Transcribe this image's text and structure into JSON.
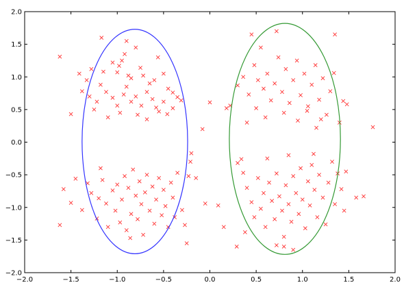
{
  "chart_data": {
    "type": "scatter",
    "xlim": [
      -2.0,
      2.0
    ],
    "ylim": [
      -2.0,
      2.0
    ],
    "x_ticks": [
      "−2.0",
      "−1.5",
      "−1.0",
      "−0.5",
      "0.0",
      "0.5",
      "1.0",
      "1.5",
      "2.0"
    ],
    "y_ticks": [
      "2.0",
      "1.5",
      "1.0",
      "0.5",
      "0.0",
      "−0.5",
      "−1.0",
      "−1.5",
      "−2.0"
    ],
    "grid": false,
    "marker": "x",
    "point_color": "#ff3333",
    "ellipses": [
      {
        "cx": -0.81,
        "cy": 0.01,
        "rx": 0.57,
        "ry": 1.72,
        "color": "#3333ff"
      },
      {
        "cx": 0.81,
        "cy": 0.05,
        "rx": 0.6,
        "ry": 1.77,
        "color": "#339933"
      }
    ],
    "points": [
      [
        -1.62,
        1.31
      ],
      [
        -1.41,
        1.05
      ],
      [
        -1.33,
        0.95
      ],
      [
        -1.28,
        1.12
      ],
      [
        -1.15,
        1.08
      ],
      [
        -1.05,
        1.22
      ],
      [
        -0.98,
        1.17
      ],
      [
        -0.95,
        1.25
      ],
      [
        -0.92,
        1.35
      ],
      [
        -0.88,
        1.02
      ],
      [
        -0.85,
        0.98
      ],
      [
        -0.8,
        1.45
      ],
      [
        -0.75,
        1.14
      ],
      [
        -0.72,
        1.02
      ],
      [
        -0.65,
        0.9
      ],
      [
        -0.6,
        0.95
      ],
      [
        -0.56,
        1.3
      ],
      [
        -0.5,
        1.05
      ],
      [
        -0.45,
        0.82
      ],
      [
        -0.4,
        0.76
      ],
      [
        -0.35,
        0.69
      ],
      [
        -0.31,
        0.64
      ],
      [
        -1.38,
        0.78
      ],
      [
        -1.3,
        0.7
      ],
      [
        -1.22,
        0.62
      ],
      [
        -1.18,
        0.88
      ],
      [
        -1.12,
        0.77
      ],
      [
        -1.05,
        0.68
      ],
      [
        -1.0,
        0.56
      ],
      [
        -0.93,
        0.73
      ],
      [
        -0.9,
        0.85
      ],
      [
        -0.85,
        0.62
      ],
      [
        -0.8,
        0.7
      ],
      [
        -0.74,
        0.56
      ],
      [
        -0.68,
        0.77
      ],
      [
        -0.62,
        0.66
      ],
      [
        -0.58,
        0.53
      ],
      [
        -0.55,
        0.47
      ],
      [
        -0.5,
        0.62
      ],
      [
        -0.46,
        0.43
      ],
      [
        -0.4,
        0.52
      ],
      [
        -1.5,
        0.43
      ],
      [
        -1.25,
        0.5
      ],
      [
        -1.1,
        0.38
      ],
      [
        -0.97,
        0.45
      ],
      [
        -0.78,
        0.42
      ],
      [
        -0.68,
        0.35
      ],
      [
        -1.17,
        1.6
      ],
      [
        -0.9,
        1.55
      ],
      [
        -1.0,
        1.07
      ],
      [
        -1.58,
        -0.72
      ],
      [
        -1.5,
        -0.93
      ],
      [
        -1.45,
        -0.56
      ],
      [
        -1.38,
        -1.04
      ],
      [
        -1.32,
        -0.63
      ],
      [
        -1.28,
        -0.78
      ],
      [
        -1.22,
        -1.17
      ],
      [
        -1.2,
        -0.86
      ],
      [
        -1.16,
        -0.58
      ],
      [
        -1.12,
        -0.94
      ],
      [
        -1.1,
        -1.3
      ],
      [
        -1.05,
        -0.74
      ],
      [
        -1.02,
        -1.05
      ],
      [
        -1.0,
        -0.65
      ],
      [
        -0.97,
        -1.23
      ],
      [
        -0.95,
        -0.88
      ],
      [
        -0.92,
        -0.52
      ],
      [
        -0.9,
        -1.35
      ],
      [
        -0.88,
        -0.7
      ],
      [
        -0.85,
        -1.1
      ],
      [
        -0.83,
        -0.42
      ],
      [
        -0.8,
        -0.82
      ],
      [
        -0.78,
        -1.18
      ],
      [
        -0.76,
        -0.6
      ],
      [
        -0.74,
        -0.95
      ],
      [
        -0.72,
        -1.42
      ],
      [
        -0.7,
        -0.77
      ],
      [
        -0.68,
        -0.5
      ],
      [
        -0.65,
        -1.05
      ],
      [
        -0.62,
        -0.68
      ],
      [
        -0.6,
        -1.25
      ],
      [
        -0.58,
        -0.88
      ],
      [
        -0.55,
        -0.55
      ],
      [
        -0.52,
        -1.12
      ],
      [
        -0.5,
        -0.73
      ],
      [
        -0.48,
        -0.98
      ],
      [
        -0.45,
        -1.3
      ],
      [
        -0.42,
        -0.62
      ],
      [
        -0.4,
        -0.85
      ],
      [
        -0.38,
        -1.15
      ],
      [
        -0.35,
        -0.47
      ],
      [
        -0.3,
        -1.04
      ],
      [
        -0.27,
        -1.27
      ],
      [
        -0.25,
        -1.55
      ],
      [
        -0.23,
        -0.52
      ],
      [
        -0.21,
        -0.3
      ],
      [
        -0.2,
        -0.17
      ],
      [
        -0.86,
        -1.47
      ],
      [
        -1.62,
        -1.27
      ],
      [
        -1.18,
        -0.4
      ],
      [
        -0.08,
        0.2
      ],
      [
        0.0,
        0.61
      ],
      [
        -0.05,
        -0.94
      ],
      [
        0.09,
        -0.97
      ],
      [
        0.15,
        -1.3
      ],
      [
        0.18,
        0.52
      ],
      [
        0.22,
        0.56
      ],
      [
        0.29,
        -1.6
      ],
      [
        0.34,
        -0.26
      ],
      [
        -0.15,
        -0.55
      ],
      [
        0.3,
        0.87
      ],
      [
        0.36,
        1.0
      ],
      [
        0.42,
        0.73
      ],
      [
        0.48,
        1.18
      ],
      [
        0.52,
        0.95
      ],
      [
        0.55,
        1.45
      ],
      [
        0.58,
        0.82
      ],
      [
        0.62,
        1.05
      ],
      [
        0.66,
        0.64
      ],
      [
        0.7,
        0.9
      ],
      [
        0.74,
        1.3
      ],
      [
        0.78,
        0.77
      ],
      [
        0.82,
        1.12
      ],
      [
        0.86,
        0.6
      ],
      [
        0.9,
        0.95
      ],
      [
        0.94,
        1.25
      ],
      [
        0.98,
        0.72
      ],
      [
        1.02,
        1.05
      ],
      [
        1.06,
        0.55
      ],
      [
        1.1,
        0.88
      ],
      [
        1.14,
        1.18
      ],
      [
        1.18,
        0.65
      ],
      [
        1.22,
        0.98
      ],
      [
        1.26,
        0.42
      ],
      [
        1.3,
        0.78
      ],
      [
        1.34,
        1.06
      ],
      [
        1.4,
        0.3
      ],
      [
        1.44,
        0.63
      ],
      [
        1.48,
        0.58
      ],
      [
        1.35,
        1.65
      ],
      [
        0.45,
        1.65
      ],
      [
        0.72,
        1.7
      ],
      [
        0.5,
        0.52
      ],
      [
        0.6,
        0.38
      ],
      [
        0.8,
        0.45
      ],
      [
        0.95,
        0.33
      ],
      [
        1.05,
        0.48
      ],
      [
        1.15,
        0.22
      ],
      [
        1.2,
        0.35
      ],
      [
        0.4,
        0.3
      ],
      [
        0.3,
        -0.32
      ],
      [
        0.36,
        -0.47
      ],
      [
        0.4,
        -0.7
      ],
      [
        0.45,
        -0.92
      ],
      [
        0.48,
        -1.15
      ],
      [
        0.52,
        -0.55
      ],
      [
        0.55,
        -1.02
      ],
      [
        0.58,
        -0.78
      ],
      [
        0.6,
        -1.3
      ],
      [
        0.64,
        -0.62
      ],
      [
        0.67,
        -0.9
      ],
      [
        0.7,
        -1.18
      ],
      [
        0.72,
        -0.48
      ],
      [
        0.75,
        -0.83
      ],
      [
        0.78,
        -1.05
      ],
      [
        0.8,
        -1.45
      ],
      [
        0.82,
        -0.66
      ],
      [
        0.85,
        -0.95
      ],
      [
        0.88,
        -1.22
      ],
      [
        0.9,
        -0.52
      ],
      [
        0.93,
        -0.78
      ],
      [
        0.96,
        -1.1
      ],
      [
        0.98,
        -0.4
      ],
      [
        1.0,
        -0.88
      ],
      [
        1.03,
        -1.32
      ],
      [
        1.06,
        -0.6
      ],
      [
        1.08,
        -0.97
      ],
      [
        1.1,
        -0.35
      ],
      [
        1.13,
        -0.73
      ],
      [
        1.16,
        -1.15
      ],
      [
        1.18,
        -0.5
      ],
      [
        1.22,
        -0.85
      ],
      [
        1.25,
        -1.26
      ],
      [
        1.28,
        -0.62
      ],
      [
        1.32,
        -0.3
      ],
      [
        1.35,
        -0.95
      ],
      [
        1.38,
        -0.48
      ],
      [
        1.42,
        -0.72
      ],
      [
        1.45,
        -1.05
      ],
      [
        1.47,
        -0.45
      ],
      [
        0.72,
        -1.58
      ],
      [
        0.8,
        -1.6
      ],
      [
        0.9,
        -1.65
      ],
      [
        1.58,
        -0.85
      ],
      [
        1.66,
        -0.83
      ],
      [
        1.76,
        0.23
      ],
      [
        0.85,
        -0.2
      ],
      [
        0.62,
        -0.25
      ],
      [
        1.12,
        -0.18
      ],
      [
        0.38,
        -1.38
      ]
    ]
  }
}
